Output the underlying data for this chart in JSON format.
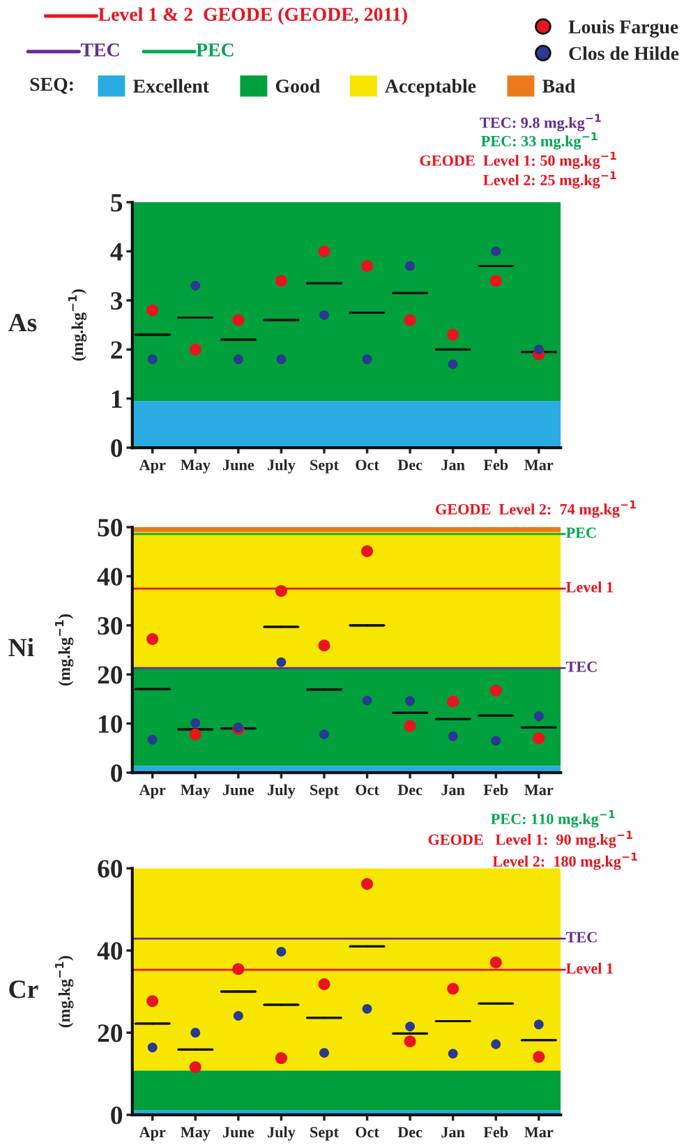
{
  "chart_data": [
    {
      "type": "scatter",
      "title": "As",
      "ylabel": "(mg.kg$^{−1}$)",
      "legend": "top right",
      "legend_title": "SEQ:",
      "categories": [
        "Apr",
        "May",
        "June",
        "July",
        "Sept",
        "Oct",
        "Dec",
        "Jan",
        "Feb",
        "Mar"
      ],
      "series": [
        {
          "name": "Louis Fargue",
          "color": "#e8141e",
          "values": [
            2.8,
            2.0,
            2.6,
            3.4,
            4.0,
            3.7,
            2.6,
            2.3,
            3.4,
            1.9
          ]
        },
        {
          "name": "Clos de Hilde",
          "color": "#2b3990",
          "values": [
            1.8,
            3.3,
            1.8,
            1.8,
            2.7,
            1.8,
            3.7,
            1.7,
            4.0,
            2.0
          ]
        },
        {
          "type": "box",
          "color": "#111111",
          "boxes": [
            {
              "low": 2.3,
              "q1": 2.3,
              "median": 2.3,
              "q3": 2.3,
              "high": 2.3
            },
            {
              "low": 2.65,
              "q1": 2.65,
              "median": 2.65,
              "q3": 2.65,
              "high": 2.65
            },
            {
              "low": 2.2,
              "q1": 2.2,
              "median": 2.2,
              "q3": 2.2,
              "high": 2.2
            },
            {
              "low": 2.6,
              "q1": 2.6,
              "median": 2.6,
              "q3": 2.6,
              "high": 2.6
            },
            {
              "low": 3.35,
              "q1": 3.35,
              "median": 3.35,
              "q3": 3.35,
              "high": 3.35
            },
            {
              "low": 2.75,
              "q1": 2.75,
              "median": 2.75,
              "q3": 2.75,
              "high": 2.75
            },
            {
              "low": 3.15,
              "q1": 3.15,
              "median": 3.15,
              "q3": 3.15,
              "high": 3.15
            },
            {
              "low": 2.0,
              "q1": 2.0,
              "median": 2.0,
              "q3": 2.0,
              "high": 2.0
            },
            {
              "low": 3.7,
              "q1": 3.7,
              "median": 3.7,
              "q3": 3.7,
              "high": 3.7
            },
            {
              "low": 1.95,
              "q1": 1.95,
              "median": 1.95,
              "q3": 1.95,
              "high": 1.95
            }
          ]
        }
      ],
      "ylim": [
        0,
        5
      ],
      "yticks": [
        0,
        1,
        2,
        3,
        4,
        5
      ],
      "bands": [
        {
          "axis": "y",
          "from": 0,
          "to": 0.95,
          "label": "Excellent",
          "color": "#29abe2"
        },
        {
          "axis": "y",
          "from": 0.95,
          "to": 5,
          "label": "Good",
          "color": "#00a03c"
        }
      ],
      "annotations": [
        "Level 1 & 2  GEODE (GEODE, 2011)",
        "TEC",
        "PEC",
        "TEC: 9.8 mg.kg$^{−1}$",
        "PEC: 33 mg.kg$^{−1}$",
        "GEODE  Level 1: 50 mg.kg$^{−1}$",
        "Level 2: 25 mg.kg$^{−1}$"
      ]
    },
    {
      "type": "scatter",
      "title": "Ni",
      "ylabel": "(mg.kg$^{−1}$)",
      "legend": "top",
      "categories": [
        "Apr",
        "May",
        "June",
        "July",
        "Sept",
        "Oct",
        "Dec",
        "Jan",
        "Feb",
        "Mar"
      ],
      "series": [
        {
          "color": "#e8141e",
          "values": [
            27.2,
            7.8,
            8.9,
            37.0,
            25.9,
            45.1,
            9.5,
            14.5,
            16.7,
            7.0
          ]
        },
        {
          "color": "#2b3990",
          "values": [
            6.7,
            10.1,
            9.2,
            22.5,
            7.8,
            14.7,
            14.6,
            7.4,
            6.5,
            11.5
          ]
        },
        {
          "type": "box",
          "color": "#111111",
          "boxes": [
            {
              "low": 17.0,
              "q1": 17.0,
              "median": 17.0,
              "q3": 17.0,
              "high": 17.0
            },
            {
              "low": 8.8,
              "q1": 8.8,
              "median": 8.8,
              "q3": 8.8,
              "high": 8.8
            },
            {
              "low": 9.0,
              "q1": 9.0,
              "median": 9.0,
              "q3": 9.0,
              "high": 9.0
            },
            {
              "low": 29.7,
              "q1": 29.7,
              "median": 29.7,
              "q3": 29.7,
              "high": 29.7
            },
            {
              "low": 16.9,
              "q1": 16.9,
              "median": 16.9,
              "q3": 16.9,
              "high": 16.9
            },
            {
              "low": 30.0,
              "q1": 30.0,
              "median": 30.0,
              "q3": 30.0,
              "high": 30.0
            },
            {
              "low": 12.2,
              "q1": 12.2,
              "median": 12.2,
              "q3": 12.2,
              "high": 12.2
            },
            {
              "low": 10.9,
              "q1": 10.9,
              "median": 10.9,
              "q3": 10.9,
              "high": 10.9
            },
            {
              "low": 11.6,
              "q1": 11.6,
              "median": 11.6,
              "q3": 11.6,
              "high": 11.6
            },
            {
              "low": 9.2,
              "q1": 9.2,
              "median": 9.2,
              "q3": 9.2,
              "high": 9.2
            }
          ]
        }
      ],
      "ylim": [
        0,
        50
      ],
      "yticks": [
        0,
        10,
        20,
        30,
        40,
        50
      ],
      "bands": [
        {
          "axis": "y",
          "from": 0,
          "to": 1.4,
          "color": "#29abe2"
        },
        {
          "axis": "y",
          "from": 1.4,
          "to": 21.3,
          "color": "#00a03c"
        },
        {
          "axis": "y",
          "from": 21.3,
          "to": 49,
          "label": "Acceptable",
          "color": "#f7e600"
        },
        {
          "axis": "y",
          "from": 49,
          "to": 50,
          "label": "Bad",
          "color": "#ec7a1c"
        }
      ],
      "ref_lines": [
        {
          "axis": "y",
          "value": 48.6,
          "label": "PEC",
          "color": "#00a651"
        },
        {
          "axis": "y",
          "value": 37.5,
          "label": "Level 1",
          "color": "#e8141e"
        },
        {
          "axis": "y",
          "value": 21.3,
          "label": "TEC",
          "color": "#662d91"
        }
      ],
      "annotations": [
        "GEODE  Level 2:  74 mg.kg$^{−1}$"
      ]
    },
    {
      "type": "scatter",
      "title": "Cr",
      "ylabel": "(mg.kg$^{−1}$)",
      "categories": [
        "Apr",
        "May",
        "June",
        "July",
        "Sept",
        "Oct",
        "Dec",
        "Jan",
        "Feb",
        "Mar"
      ],
      "series": [
        {
          "color": "#e8141e",
          "values": [
            27.7,
            11.6,
            35.5,
            13.8,
            31.8,
            56.2,
            17.9,
            30.7,
            37.1,
            14.1
          ]
        },
        {
          "color": "#2b3990",
          "values": [
            16.4,
            20.0,
            24.1,
            39.7,
            15.1,
            25.8,
            21.5,
            14.9,
            17.2,
            22.0
          ]
        },
        {
          "type": "box",
          "color": "#111111",
          "boxes": [
            {
              "low": 22.2,
              "q1": 22.2,
              "median": 22.2,
              "q3": 22.2,
              "high": 22.2
            },
            {
              "low": 15.9,
              "q1": 15.9,
              "median": 15.9,
              "q3": 15.9,
              "high": 15.9
            },
            {
              "low": 30.0,
              "q1": 30.0,
              "median": 30.0,
              "q3": 30.0,
              "high": 30.0
            },
            {
              "low": 26.8,
              "q1": 26.8,
              "median": 26.8,
              "q3": 26.8,
              "high": 26.8
            },
            {
              "low": 23.6,
              "q1": 23.6,
              "median": 23.6,
              "q3": 23.6,
              "high": 23.6
            },
            {
              "low": 41.0,
              "q1": 41.0,
              "median": 41.0,
              "q3": 41.0,
              "high": 41.0
            },
            {
              "low": 19.8,
              "q1": 19.8,
              "median": 19.8,
              "q3": 19.8,
              "high": 19.8
            },
            {
              "low": 22.8,
              "q1": 22.8,
              "median": 22.8,
              "q3": 22.8,
              "high": 22.8
            },
            {
              "low": 27.1,
              "q1": 27.1,
              "median": 27.1,
              "q3": 27.1,
              "high": 27.1
            },
            {
              "low": 18.2,
              "q1": 18.2,
              "median": 18.2,
              "q3": 18.2,
              "high": 18.2
            }
          ]
        }
      ],
      "ylim": [
        0,
        60
      ],
      "yticks": [
        0,
        20,
        40,
        60
      ],
      "bands": [
        {
          "axis": "y",
          "from": 0,
          "to": 1.1,
          "color": "#29abe2"
        },
        {
          "axis": "y",
          "from": 1.1,
          "to": 10.8,
          "color": "#00a03c"
        },
        {
          "axis": "y",
          "from": 10.8,
          "to": 60,
          "color": "#f7e600"
        }
      ],
      "ref_lines": [
        {
          "axis": "y",
          "value": 42.9,
          "label": "TEC",
          "color": "#662d91"
        },
        {
          "axis": "y",
          "value": 35.3,
          "label": "Level 1",
          "color": "#e8141e"
        }
      ],
      "annotations": [
        "PEC: 110 mg.kg$^{−1}$",
        "GEODE   Level 1:  90 mg.kg$^{−1}$",
        "Level 2:  180 mg.kg$^{−1}$"
      ]
    }
  ]
}
